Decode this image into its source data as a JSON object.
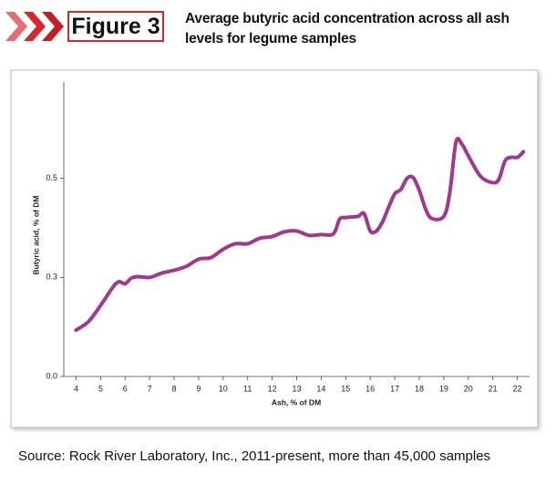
{
  "chart_data": {
    "type": "line",
    "figure_label": "Figure 3",
    "title": "Average butyric acid concentration across all ash levels for legume samples",
    "xlabel": "Ash, % of DM",
    "ylabel": "Butyric acid, % of DM",
    "source": "Source: Rock River Laboratory, Inc., 2011-present, more than 45,000 samples",
    "xlim": [
      3.5,
      22.5
    ],
    "xticks": [
      4,
      5,
      6,
      7,
      8,
      9,
      10,
      11,
      12,
      13,
      14,
      15,
      16,
      17,
      18,
      19,
      20,
      21,
      22
    ],
    "ylim": [
      0,
      0.72
    ],
    "yticks": [
      {
        "value": 0,
        "label": "0.0"
      },
      {
        "value": 0.25,
        "label": "0.3"
      },
      0.5
    ],
    "x": [
      4,
      4.5,
      5,
      5.5,
      5.75,
      6,
      6.25,
      6.5,
      7,
      7.5,
      8,
      8.5,
      9,
      9.5,
      10,
      10.5,
      11,
      11.5,
      12,
      12.5,
      13,
      13.5,
      14,
      14.5,
      14.75,
      15,
      15.5,
      15.75,
      16,
      16.25,
      16.5,
      16.75,
      17,
      17.25,
      17.5,
      17.75,
      18,
      18.25,
      18.5,
      19,
      19.25,
      19.5,
      19.75,
      20,
      20.5,
      21,
      21.25,
      21.5,
      21.75,
      22,
      22.25
    ],
    "series": [
      {
        "color": "#a3368f",
        "values": [
          0.117,
          0.138,
          0.179,
          0.225,
          0.239,
          0.234,
          0.248,
          0.252,
          0.25,
          0.261,
          0.268,
          0.278,
          0.296,
          0.3,
          0.321,
          0.335,
          0.335,
          0.349,
          0.353,
          0.365,
          0.367,
          0.356,
          0.358,
          0.36,
          0.397,
          0.401,
          0.404,
          0.411,
          0.367,
          0.367,
          0.39,
          0.427,
          0.461,
          0.472,
          0.5,
          0.502,
          0.47,
          0.424,
          0.399,
          0.404,
          0.466,
          0.592,
          0.585,
          0.557,
          0.505,
          0.489,
          0.498,
          0.544,
          0.553,
          0.553,
          0.567
        ]
      }
    ]
  }
}
